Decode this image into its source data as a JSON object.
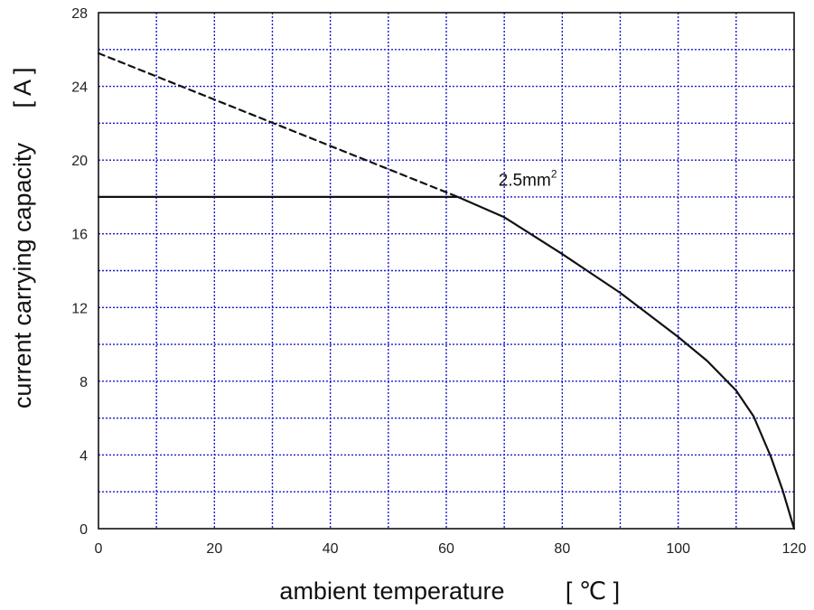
{
  "chart_data": {
    "type": "line",
    "title": "",
    "xlabel": "ambient temperature",
    "xunit": "[ ℃ ]",
    "ylabel": "current carrying capacity",
    "yunit": "[ A ]",
    "xlim": [
      0,
      120
    ],
    "ylim": [
      0,
      28
    ],
    "xticks": [
      0,
      20,
      40,
      60,
      80,
      100,
      120
    ],
    "yticks": [
      0,
      4,
      8,
      12,
      16,
      20,
      24,
      28
    ],
    "x_minor_step": 10,
    "y_minor_step": 2,
    "grid": true,
    "grid_color": "#1a1acc",
    "annotation": {
      "text": "2.5mm",
      "superscript": "2",
      "x": 69,
      "y": 18.6
    },
    "series": [
      {
        "style": "solid",
        "x": [
          0,
          62,
          70,
          80,
          90,
          100,
          105,
          110,
          113,
          116,
          118,
          120
        ],
        "y": [
          18,
          18,
          16.9,
          14.9,
          12.8,
          10.4,
          9.1,
          7.5,
          6.1,
          3.9,
          2.1,
          0
        ]
      },
      {
        "style": "dashed",
        "x": [
          0,
          62
        ],
        "y": [
          25.8,
          18
        ]
      }
    ]
  }
}
